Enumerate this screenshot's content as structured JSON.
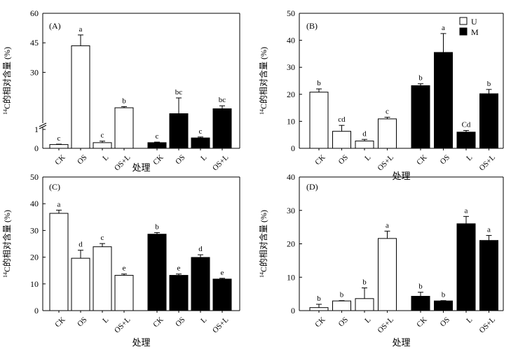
{
  "chart_data": [
    {
      "panel": "(A)",
      "type": "bar",
      "axis_break": true,
      "lower_range": [
        0,
        1
      ],
      "upper_range": [
        1,
        60
      ],
      "ylim": [
        0,
        60
      ],
      "lower_ticks": [
        0,
        1
      ],
      "upper_ticks": [
        30,
        45,
        60
      ],
      "ylabel_sup": "14",
      "ylabel_rest": "C的相对含量 (%)",
      "xlabel": "处理",
      "categories": [
        "CK",
        "OS",
        "L",
        "OS+L",
        "CK",
        "OS",
        "L",
        "OS+L"
      ],
      "groups": [
        "U",
        "U",
        "U",
        "U",
        "M",
        "M",
        "M",
        "M"
      ],
      "values": [
        0.2,
        43.5,
        0.3,
        12.0,
        0.3,
        9.0,
        0.55,
        11.5
      ],
      "errors": [
        0.02,
        5.5,
        0.08,
        0.6,
        0.03,
        8.0,
        0.05,
        1.5
      ],
      "letters": [
        "c",
        "a",
        "c",
        "b",
        "c",
        "bc",
        "c",
        "bc"
      ]
    },
    {
      "panel": "(B)",
      "type": "bar",
      "axis_break": false,
      "ylim": [
        0,
        50
      ],
      "ticks": [
        0,
        10,
        20,
        30,
        40,
        50
      ],
      "ylabel_sup": "14",
      "ylabel_rest": "C的相对含量 (%)",
      "xlabel": "处理",
      "categories": [
        "CK",
        "OS",
        "L",
        "OS+L",
        "CK",
        "OS",
        "L",
        "OS+L"
      ],
      "groups": [
        "U",
        "U",
        "U",
        "U",
        "M",
        "M",
        "M",
        "M"
      ],
      "values": [
        20.8,
        6.3,
        2.7,
        10.9,
        23.2,
        35.5,
        6.0,
        20.2
      ],
      "errors": [
        1.2,
        2.2,
        0.6,
        0.6,
        0.7,
        7.0,
        0.6,
        1.6
      ],
      "letters": [
        "b",
        "cd",
        "d",
        "c",
        "b",
        "a",
        "Cd",
        "b"
      ],
      "legend": [
        {
          "label": "U",
          "fill": "#ffffff"
        },
        {
          "label": "M",
          "fill": "#000000"
        }
      ]
    },
    {
      "panel": "(C)",
      "type": "bar",
      "axis_break": false,
      "ylim": [
        0,
        50
      ],
      "ticks": [
        0,
        10,
        20,
        30,
        40,
        50
      ],
      "ylabel_sup": "14",
      "ylabel_rest": "C的相对含量 (%)",
      "xlabel": "处理",
      "categories": [
        "CK",
        "OS",
        "L",
        "OS+L",
        "CK",
        "OS",
        "L",
        "OS+L"
      ],
      "groups": [
        "U",
        "U",
        "U",
        "U",
        "M",
        "M",
        "M",
        "M"
      ],
      "values": [
        36.4,
        19.6,
        23.9,
        13.2,
        28.6,
        13.2,
        19.9,
        11.8
      ],
      "errors": [
        1.2,
        3.0,
        1.2,
        0.5,
        0.6,
        0.5,
        1.0,
        0.3
      ],
      "letters": [
        "a",
        "d",
        "c",
        "e",
        "b",
        "e",
        "d",
        "e"
      ]
    },
    {
      "panel": "(D)",
      "type": "bar",
      "axis_break": false,
      "ylim": [
        0,
        40
      ],
      "ticks": [
        0,
        10,
        20,
        30,
        40
      ],
      "ylabel_sup": "14",
      "ylabel_rest": "C的相对含量 (%)",
      "xlabel": "处理",
      "categories": [
        "CK",
        "OS",
        "L",
        "OS+L",
        "CK",
        "OS",
        "L",
        "OS+L"
      ],
      "groups": [
        "U",
        "U",
        "U",
        "U",
        "M",
        "M",
        "M",
        "M"
      ],
      "values": [
        0.9,
        2.9,
        3.6,
        21.6,
        4.3,
        2.9,
        26.0,
        21.0
      ],
      "errors": [
        1.0,
        0.1,
        3.2,
        2.2,
        1.2,
        0.1,
        2.2,
        1.5
      ],
      "letters": [
        "b",
        "b",
        "b",
        "a",
        "b",
        "b",
        "a",
        "a"
      ]
    }
  ],
  "colors": {
    "U": "#ffffff",
    "M": "#000000",
    "stroke": "#000000"
  }
}
